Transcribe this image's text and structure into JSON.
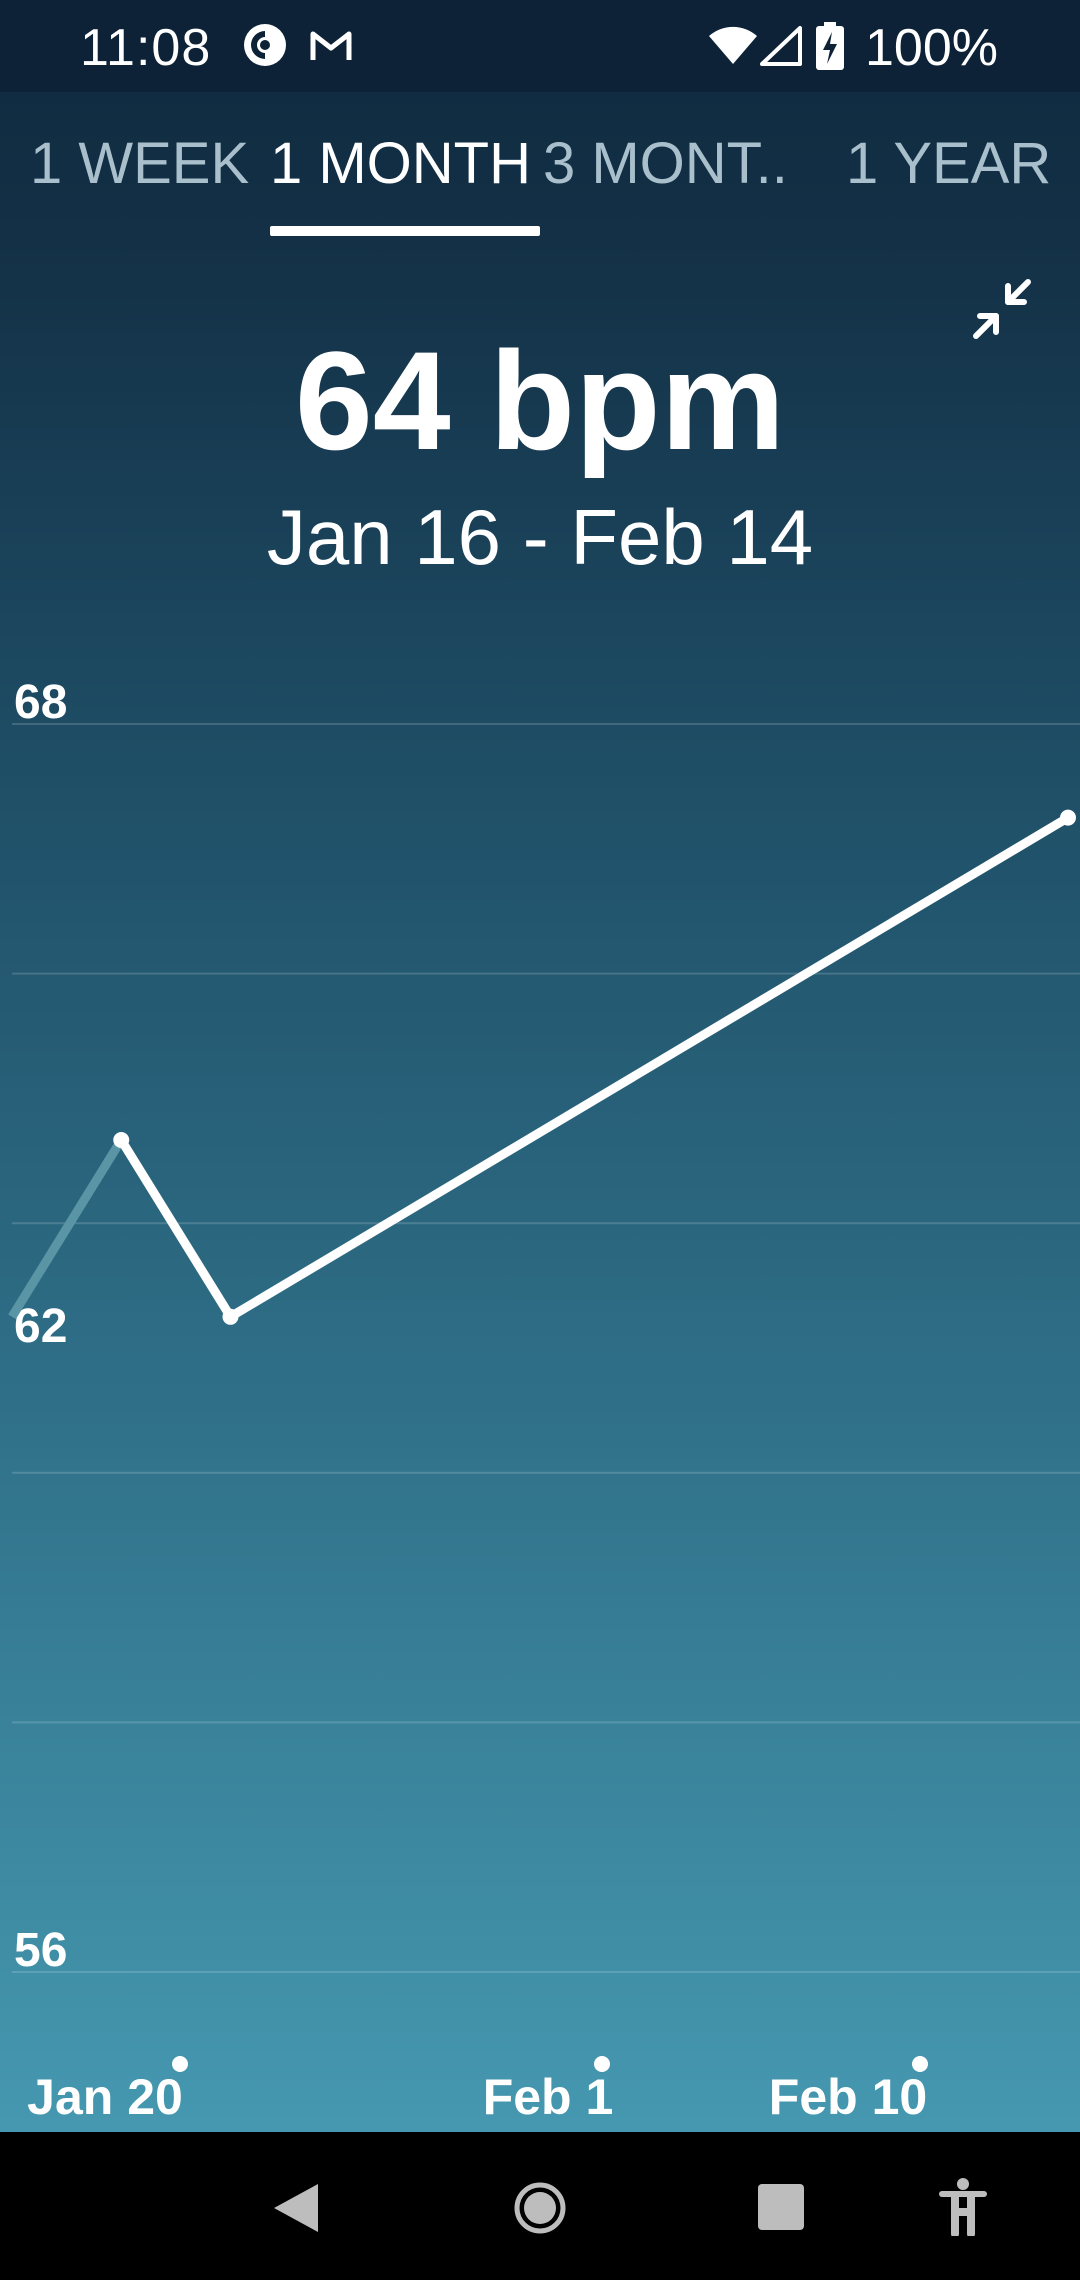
{
  "status_bar": {
    "time": "11:08",
    "battery": "100%",
    "icons": [
      "pocketcasts-icon",
      "gmail-icon",
      "wifi-icon",
      "signal-icon",
      "battery-charging-icon"
    ]
  },
  "tabs": [
    {
      "label": "1 WEEK",
      "active": false
    },
    {
      "label": "1 MONTH",
      "active": true
    },
    {
      "label": "3 MONT..",
      "active": false
    },
    {
      "label": "1 YEAR",
      "active": false
    }
  ],
  "summary": {
    "value": "64 bpm",
    "range": "Jan 16 - Feb 14"
  },
  "chart_data": {
    "type": "line",
    "x": [
      "2025-01-16",
      "2025-01-19",
      "2025-01-22",
      "2025-02-14"
    ],
    "values": [
      62.3,
      64.0,
      62.3,
      67.1
    ],
    "ylim": [
      56,
      68
    ],
    "yticks": [
      "68",
      "62",
      "56"
    ],
    "xtick_labels": [
      "Jan 20",
      "Feb 1",
      "Feb 10"
    ],
    "grid": true,
    "line_color": "#ffffff",
    "faded_segment_color": "#5a95a6"
  },
  "nav": {
    "icons": [
      "back-icon",
      "home-icon",
      "recents-icon",
      "accessibility-icon"
    ]
  }
}
